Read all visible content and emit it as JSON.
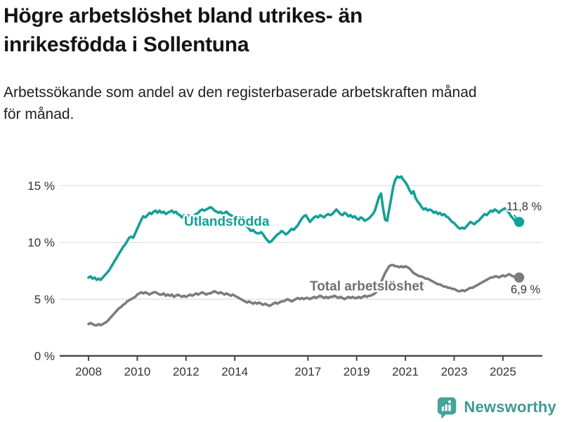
{
  "header": {
    "title": "Högre arbetslöshet bland utrikes- än\ninrikesfödda i Sollentuna",
    "subtitle": "Arbetssökande som andel av den registerbaserade arbetskraften månad\nför månad."
  },
  "colors": {
    "accent_teal": "#14A096",
    "line_gray": "#7C7C7C",
    "axis": "#4A4A4A",
    "grid": "#E0E0E0",
    "tick_label": "#333333",
    "value_label": "#333333",
    "logo_teal": "#46A39B"
  },
  "chart_data": {
    "type": "line",
    "title": "Högre arbetslöshet bland utrikes- än inrikesfödda i Sollentuna",
    "subtitle": "Arbetssökande som andel av den registerbaserade arbetskraften månad för månad.",
    "xlabel": "",
    "ylabel": "%",
    "frequency": "monthly",
    "start_year": 2008,
    "start_month": 1,
    "end_year": 2025,
    "end_month": 9,
    "ylim": [
      0,
      16
    ],
    "grid": "horizontal",
    "legend_position": "inline-labels",
    "y_ticks": [
      {
        "value": 0,
        "label": "0 %"
      },
      {
        "value": 5,
        "label": "5 %"
      },
      {
        "value": 10,
        "label": "10 %"
      },
      {
        "value": 15,
        "label": "15 %"
      }
    ],
    "x_ticks": [
      {
        "value": 2008,
        "label": "2008"
      },
      {
        "value": 2010,
        "label": "2010"
      },
      {
        "value": 2012,
        "label": "2012"
      },
      {
        "value": 2014,
        "label": "2014"
      },
      {
        "value": 2017,
        "label": "2017"
      },
      {
        "value": 2019,
        "label": "2019"
      },
      {
        "value": 2021,
        "label": "2021"
      },
      {
        "value": 2023,
        "label": "2023"
      },
      {
        "value": 2025,
        "label": "2025"
      }
    ],
    "series": [
      {
        "name": "Utlandsfödda",
        "label": "Utlandsfödda",
        "color": "#14A096",
        "label_color": "#14A096",
        "end_label": "11,8 %",
        "end_value": 11.8,
        "values": [
          6.9,
          7.0,
          6.8,
          6.9,
          6.7,
          6.8,
          6.7,
          6.9,
          7.1,
          7.3,
          7.5,
          7.8,
          8.1,
          8.4,
          8.7,
          9.0,
          9.3,
          9.6,
          9.8,
          10.1,
          10.4,
          10.5,
          10.4,
          10.8,
          11.2,
          11.6,
          12.0,
          12.3,
          12.2,
          12.4,
          12.6,
          12.5,
          12.7,
          12.8,
          12.6,
          12.8,
          12.6,
          12.7,
          12.5,
          12.6,
          12.7,
          12.8,
          12.6,
          12.7,
          12.5,
          12.4,
          12.2,
          12.4,
          12.2,
          12.4,
          12.3,
          12.2,
          12.4,
          12.5,
          12.6,
          12.8,
          12.9,
          12.8,
          12.9,
          13.0,
          13.1,
          13.0,
          12.8,
          12.7,
          12.6,
          12.7,
          12.5,
          12.6,
          12.7,
          12.5,
          12.4,
          12.3,
          12.2,
          12.3,
          12.1,
          11.9,
          11.7,
          11.6,
          11.4,
          11.2,
          11.0,
          11.1,
          10.9,
          10.8,
          10.8,
          10.9,
          10.7,
          10.4,
          10.2,
          10.0,
          10.1,
          10.3,
          10.5,
          10.7,
          10.8,
          11.0,
          10.9,
          10.7,
          10.8,
          11.0,
          11.2,
          11.1,
          11.3,
          11.5,
          11.8,
          12.1,
          12.3,
          12.4,
          12.1,
          11.8,
          12.0,
          12.2,
          12.3,
          12.2,
          12.4,
          12.3,
          12.2,
          12.4,
          12.5,
          12.4,
          12.5,
          12.7,
          12.9,
          12.7,
          12.5,
          12.4,
          12.6,
          12.5,
          12.3,
          12.4,
          12.2,
          12.3,
          12.1,
          12.0,
          12.2,
          12.1,
          11.9,
          12.0,
          12.1,
          12.3,
          12.5,
          12.8,
          13.4,
          14.0,
          14.3,
          13.0,
          12.0,
          11.9,
          12.9,
          13.9,
          14.9,
          15.5,
          15.8,
          15.7,
          15.8,
          15.5,
          15.3,
          15.0,
          14.6,
          14.3,
          14.5,
          13.9,
          13.6,
          13.4,
          13.1,
          12.9,
          13.0,
          12.8,
          12.9,
          12.8,
          12.6,
          12.7,
          12.5,
          12.6,
          12.4,
          12.5,
          12.3,
          12.2,
          12.0,
          11.8,
          11.7,
          11.5,
          11.3,
          11.2,
          11.3,
          11.2,
          11.4,
          11.6,
          11.8,
          11.7,
          11.6,
          11.8,
          11.9,
          12.1,
          12.3,
          12.5,
          12.4,
          12.6,
          12.8,
          12.7,
          12.9,
          12.8,
          12.6,
          12.8,
          12.9,
          13.0,
          12.8,
          12.6,
          12.3,
          12.1,
          11.9,
          11.8,
          11.8
        ]
      },
      {
        "name": "Total arbetslöshet",
        "label": "Total arbetslöshet",
        "color": "#7C7C7C",
        "label_color": "#6F6F6F",
        "end_label": "6,9 %",
        "end_value": 6.9,
        "values": [
          2.8,
          2.9,
          2.8,
          2.7,
          2.7,
          2.8,
          2.7,
          2.8,
          2.9,
          3.0,
          3.2,
          3.4,
          3.6,
          3.8,
          4.0,
          4.2,
          4.3,
          4.5,
          4.6,
          4.8,
          4.9,
          5.0,
          5.1,
          5.2,
          5.4,
          5.5,
          5.6,
          5.5,
          5.6,
          5.5,
          5.4,
          5.5,
          5.6,
          5.6,
          5.5,
          5.4,
          5.4,
          5.5,
          5.3,
          5.4,
          5.3,
          5.4,
          5.2,
          5.3,
          5.4,
          5.3,
          5.2,
          5.3,
          5.2,
          5.3,
          5.4,
          5.3,
          5.4,
          5.5,
          5.4,
          5.5,
          5.6,
          5.5,
          5.4,
          5.5,
          5.5,
          5.6,
          5.7,
          5.6,
          5.5,
          5.6,
          5.5,
          5.4,
          5.5,
          5.4,
          5.3,
          5.4,
          5.3,
          5.2,
          5.1,
          5.0,
          4.9,
          4.8,
          4.7,
          4.8,
          4.7,
          4.6,
          4.7,
          4.6,
          4.7,
          4.6,
          4.5,
          4.6,
          4.5,
          4.4,
          4.5,
          4.6,
          4.7,
          4.6,
          4.7,
          4.8,
          4.8,
          4.9,
          5.0,
          4.9,
          4.8,
          4.9,
          5.0,
          5.1,
          5.0,
          5.1,
          5.0,
          5.1,
          5.1,
          5.0,
          5.1,
          5.2,
          5.1,
          5.2,
          5.3,
          5.2,
          5.1,
          5.2,
          5.1,
          5.2,
          5.2,
          5.3,
          5.2,
          5.1,
          5.2,
          5.1,
          5.0,
          5.1,
          5.2,
          5.1,
          5.2,
          5.1,
          5.1,
          5.2,
          5.1,
          5.2,
          5.3,
          5.2,
          5.3,
          5.3,
          5.4,
          5.5,
          5.7,
          6.1,
          6.5,
          6.9,
          7.3,
          7.6,
          7.9,
          8.0,
          8.0,
          7.9,
          7.9,
          7.8,
          7.9,
          7.8,
          7.9,
          7.8,
          7.7,
          7.5,
          7.3,
          7.2,
          7.1,
          7.0,
          7.0,
          6.9,
          6.8,
          6.8,
          6.7,
          6.6,
          6.5,
          6.4,
          6.3,
          6.3,
          6.2,
          6.1,
          6.1,
          6.0,
          6.0,
          5.9,
          5.9,
          5.8,
          5.7,
          5.7,
          5.8,
          5.7,
          5.8,
          5.9,
          6.0,
          6.0,
          6.1,
          6.2,
          6.3,
          6.4,
          6.5,
          6.6,
          6.7,
          6.8,
          6.9,
          6.9,
          7.0,
          7.0,
          6.9,
          7.0,
          7.1,
          7.0,
          7.1,
          7.2,
          7.1,
          7.0,
          7.0,
          6.9,
          6.9
        ]
      }
    ]
  },
  "footer": {
    "brand": "Newsworthy",
    "logo_icon": "bar-chart-speech-bubble-icon"
  }
}
